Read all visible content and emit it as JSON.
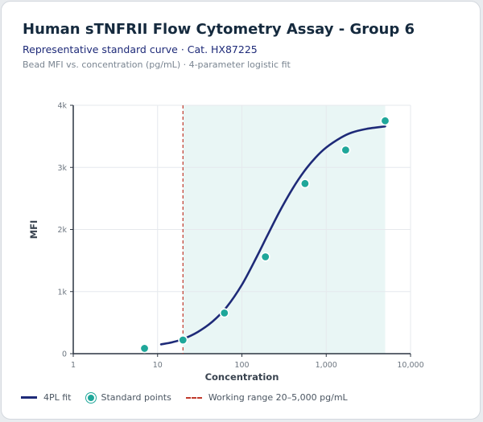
{
  "header": {
    "title": "Human sTNFRII Flow Cytometry Assay - Group 6",
    "subtitle": "Representative standard curve · Cat. HX87225",
    "description": "Bead MFI vs. concentration (pg/mL) · 4-parameter logistic fit"
  },
  "colors": {
    "curve": "#1e2a78",
    "points": "#1fa79a",
    "range_line": "#c0392b",
    "range_fill": "#e3f4f3"
  },
  "chart_data": {
    "type": "scatter",
    "xlabel": "Concentration",
    "ylabel": "MFI",
    "x_scale": "log",
    "xlim": [
      1,
      10000
    ],
    "ylim": [
      0,
      4000
    ],
    "x_ticks": [
      1,
      10,
      100,
      1000,
      10000
    ],
    "x_tick_labels": [
      "1",
      "10",
      "100",
      "1,000",
      "10,000"
    ],
    "y_ticks": [
      0,
      1000,
      2000,
      3000,
      4000
    ],
    "y_tick_labels": [
      "0",
      "1k",
      "2k",
      "3k",
      "4k"
    ],
    "grid": true,
    "legend_position": "bottom",
    "series": [
      {
        "name": "4PL fit",
        "kind": "line",
        "x": [
          11,
          15,
          20,
          30,
          45,
          65,
          100,
          150,
          200,
          280,
          400,
          550,
          750,
          1000,
          1500,
          2000,
          3000,
          5000
        ],
        "y": [
          150,
          185,
          235,
          350,
          520,
          740,
          1110,
          1560,
          1900,
          2290,
          2660,
          2940,
          3160,
          3320,
          3480,
          3560,
          3620,
          3660
        ]
      },
      {
        "name": "Standard points",
        "kind": "scatter",
        "x": [
          7,
          20,
          62,
          190,
          560,
          1700,
          5000
        ],
        "y": [
          85,
          220,
          655,
          1560,
          2740,
          3280,
          3750
        ]
      }
    ],
    "annotations": [
      {
        "kind": "vline",
        "x": 20,
        "style": "dashed"
      },
      {
        "kind": "band",
        "x": [
          20,
          5000
        ]
      }
    ],
    "legend": [
      {
        "label": "4PL fit",
        "marker": "line"
      },
      {
        "label": "Standard points",
        "marker": "dot"
      },
      {
        "label": "Working range 20–5,000 pg/mL",
        "marker": "dashed-line"
      }
    ]
  }
}
